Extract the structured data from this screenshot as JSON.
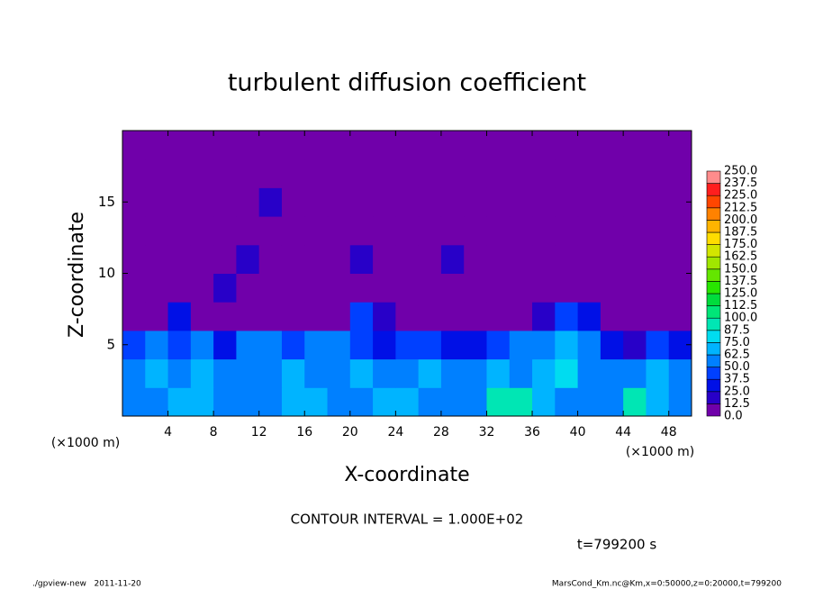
{
  "chart_data": {
    "type": "heatmap",
    "title": "turbulent diffusion coefficient",
    "x_label": "X-coordinate",
    "y_label": "Z-coordinate",
    "x_unit": "(×1000 m)",
    "y_unit": "(×1000 m)",
    "xlim": [
      0,
      50
    ],
    "ylim": [
      0,
      20
    ],
    "xticks": [
      4,
      8,
      12,
      16,
      20,
      24,
      28,
      32,
      36,
      40,
      44,
      48
    ],
    "yticks": [
      5,
      10,
      15
    ],
    "x": [
      1,
      3,
      5,
      7,
      9,
      11,
      13,
      15,
      17,
      19,
      21,
      23,
      25,
      27,
      29,
      31,
      33,
      35,
      37,
      39,
      41,
      43,
      45,
      47,
      49
    ],
    "y": [
      1,
      3,
      5,
      7,
      9,
      11,
      13,
      15,
      17,
      19
    ],
    "values": [
      [
        55,
        60,
        65,
        70,
        55,
        50,
        60,
        65,
        70,
        60,
        55,
        65,
        70,
        60,
        55,
        50,
        95,
        90,
        65,
        55,
        50,
        60,
        95,
        65,
        60
      ],
      [
        60,
        65,
        55,
        70,
        50,
        55,
        60,
        65,
        55,
        60,
        70,
        55,
        50,
        65,
        60,
        55,
        65,
        60,
        70,
        75,
        60,
        55,
        50,
        65,
        55
      ],
      [
        45,
        55,
        40,
        60,
        30,
        55,
        50,
        45,
        50,
        55,
        45,
        30,
        40,
        45,
        35,
        30,
        40,
        50,
        60,
        65,
        50,
        30,
        20,
        40,
        35
      ],
      [
        5,
        10,
        35,
        5,
        5,
        5,
        5,
        5,
        5,
        10,
        40,
        20,
        5,
        5,
        5,
        5,
        5,
        5,
        15,
        45,
        25,
        5,
        5,
        5,
        5
      ],
      [
        5,
        5,
        5,
        5,
        15,
        5,
        5,
        5,
        5,
        5,
        5,
        5,
        5,
        5,
        5,
        5,
        5,
        5,
        5,
        5,
        5,
        5,
        5,
        5,
        5
      ],
      [
        5,
        5,
        5,
        5,
        5,
        20,
        5,
        5,
        5,
        5,
        15,
        5,
        5,
        5,
        15,
        5,
        5,
        5,
        5,
        5,
        5,
        5,
        5,
        5,
        5
      ],
      [
        5,
        5,
        5,
        5,
        5,
        5,
        5,
        5,
        5,
        5,
        5,
        5,
        5,
        5,
        5,
        5,
        5,
        5,
        5,
        5,
        5,
        5,
        5,
        5,
        5
      ],
      [
        5,
        5,
        5,
        5,
        5,
        5,
        15,
        5,
        5,
        5,
        5,
        5,
        5,
        5,
        5,
        5,
        5,
        5,
        5,
        5,
        5,
        5,
        5,
        5,
        5
      ],
      [
        5,
        5,
        5,
        5,
        5,
        5,
        5,
        5,
        5,
        5,
        5,
        5,
        5,
        5,
        5,
        5,
        5,
        5,
        5,
        5,
        5,
        5,
        5,
        5,
        5
      ],
      [
        5,
        5,
        5,
        5,
        5,
        5,
        5,
        5,
        5,
        5,
        5,
        5,
        5,
        5,
        5,
        5,
        5,
        5,
        5,
        5,
        5,
        5,
        5,
        5,
        5
      ]
    ],
    "levels": [
      {
        "value": 0,
        "label": "0.0"
      },
      {
        "value": 12.5,
        "label": "12.5"
      },
      {
        "value": 25,
        "label": "25.0"
      },
      {
        "value": 37.5,
        "label": "37.5"
      },
      {
        "value": 50,
        "label": "50.0"
      },
      {
        "value": 62.5,
        "label": "62.5"
      },
      {
        "value": 75,
        "label": "75.0"
      },
      {
        "value": 87.5,
        "label": "87.5"
      },
      {
        "value": 100,
        "label": "100.0"
      },
      {
        "value": 112.5,
        "label": "112.5"
      },
      {
        "value": 125,
        "label": "125.0"
      },
      {
        "value": 137.5,
        "label": "137.5"
      },
      {
        "value": 150,
        "label": "150.0"
      },
      {
        "value": 162.5,
        "label": "162.5"
      },
      {
        "value": 175,
        "label": "175.0"
      },
      {
        "value": 187.5,
        "label": "187.5"
      },
      {
        "value": 200,
        "label": "200.0"
      },
      {
        "value": 212.5,
        "label": "212.5"
      },
      {
        "value": 225,
        "label": "225.0"
      },
      {
        "value": 237.5,
        "label": "237.5"
      },
      {
        "value": 250,
        "label": "250.0"
      }
    ],
    "colors": [
      "#7000aa",
      "#2800c8",
      "#0010e6",
      "#0040ff",
      "#0080ff",
      "#00b4ff",
      "#00dcf0",
      "#00e6b4",
      "#00e678",
      "#00dc3c",
      "#28e600",
      "#64e600",
      "#a0e600",
      "#d2e600",
      "#ffdc00",
      "#ffb400",
      "#ff8200",
      "#ff4600",
      "#ff1e1e",
      "#ff8c8c"
    ],
    "contour_interval": "CONTOUR INTERVAL = 1.000E+02",
    "time_label": "t=799200 s",
    "footer_left": "./gpview-new   2011-11-20",
    "footer_right": "MarsCond_Km.nc@Km,x=0:50000,z=0:20000,t=799200"
  }
}
